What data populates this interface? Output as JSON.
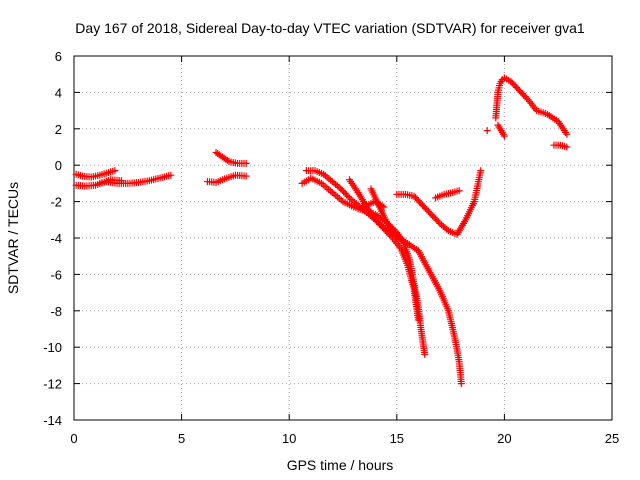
{
  "chart_data": {
    "type": "scatter",
    "title": "Day 167 of 2018, Sidereal Day-to-day VTEC variation (SDTVAR) for receiver gva1",
    "xlabel": "GPS time / hours",
    "ylabel": "SDTVAR / TECUs",
    "xlim": [
      0,
      25
    ],
    "ylim": [
      -14,
      6
    ],
    "xticks": [
      0,
      5,
      10,
      15,
      20,
      25
    ],
    "yticks": [
      -14,
      -12,
      -10,
      -8,
      -6,
      -4,
      -2,
      0,
      2,
      4,
      6
    ],
    "grid": true,
    "marker": "+",
    "color": "#ff0000",
    "series": [
      {
        "x": [
          0.1,
          0.4,
          0.8,
          1.2,
          1.6,
          1.9
        ],
        "y": [
          -0.5,
          -0.6,
          -0.65,
          -0.55,
          -0.4,
          -0.3
        ]
      },
      {
        "x": [
          0.1,
          0.5,
          1.0,
          1.5,
          2.0,
          2.5,
          3.0,
          3.5,
          4.0,
          4.5
        ],
        "y": [
          -1.1,
          -1.15,
          -1.1,
          -0.9,
          -1.0,
          -1.0,
          -0.95,
          -0.85,
          -0.7,
          -0.55
        ]
      },
      {
        "x": [
          1.2,
          1.7,
          2.2
        ],
        "y": [
          -1.0,
          -0.8,
          -0.85
        ]
      },
      {
        "x": [
          6.2,
          6.6,
          7.0,
          7.5,
          8.0
        ],
        "y": [
          -0.9,
          -0.95,
          -0.75,
          -0.55,
          -0.6
        ]
      },
      {
        "x": [
          6.6,
          6.9,
          7.2,
          7.6,
          8.0
        ],
        "y": [
          0.7,
          0.45,
          0.2,
          0.1,
          0.1
        ]
      },
      {
        "x": [
          10.6,
          10.9
        ],
        "y": [
          -1.0,
          -0.8
        ]
      },
      {
        "x": [
          10.8,
          11.2,
          11.6,
          12.0,
          12.4,
          12.8,
          13.2,
          13.6,
          14.0,
          14.4,
          14.8,
          15.0,
          15.2
        ],
        "y": [
          -0.3,
          -0.3,
          -0.5,
          -0.9,
          -1.3,
          -1.8,
          -2.2,
          -2.6,
          -3.0,
          -3.4,
          -3.7,
          -3.9,
          -4.1
        ]
      },
      {
        "x": [
          11.0,
          11.5,
          12.0,
          12.5,
          13.0,
          13.5,
          14.0,
          14.5,
          15.0,
          15.3,
          15.6,
          15.8,
          16.0,
          16.1,
          16.2,
          16.3
        ],
        "y": [
          -0.7,
          -1.0,
          -1.5,
          -2.0,
          -2.3,
          -2.5,
          -2.7,
          -3.1,
          -3.7,
          -4.2,
          -5.2,
          -6.5,
          -7.8,
          -8.8,
          -9.6,
          -10.4
        ]
      },
      {
        "x": [
          12.8,
          13.2,
          13.6,
          14.0,
          14.4,
          14.8,
          15.2,
          15.5,
          15.8,
          16.0
        ],
        "y": [
          -0.8,
          -1.5,
          -2.3,
          -3.0,
          -3.5,
          -4.0,
          -4.6,
          -5.5,
          -6.8,
          -8.5
        ]
      },
      {
        "x": [
          13.8,
          14.2,
          14.6,
          15.0,
          15.5,
          16.0,
          16.5,
          17.0,
          17.4,
          17.7,
          17.9,
          18.0
        ],
        "y": [
          -1.3,
          -2.3,
          -3.3,
          -3.9,
          -4.3,
          -4.7,
          -5.8,
          -6.9,
          -8.0,
          -9.5,
          -10.8,
          -12.0
        ]
      },
      {
        "x": [
          13.2,
          13.6,
          14.0,
          14.4
        ],
        "y": [
          -2.4,
          -2.2,
          -2.0,
          -2.3
        ]
      },
      {
        "x": [
          15.0,
          15.4,
          15.8,
          16.2,
          16.6,
          17.0,
          17.4,
          17.8,
          18.2,
          18.6,
          18.9
        ],
        "y": [
          -1.6,
          -1.6,
          -1.7,
          -2.2,
          -2.7,
          -3.2,
          -3.6,
          -3.8,
          -3.0,
          -2.0,
          -0.3
        ]
      },
      {
        "x": [
          16.8,
          17.2,
          17.6,
          17.9
        ],
        "y": [
          -1.8,
          -1.6,
          -1.5,
          -1.4
        ]
      },
      {
        "x": [
          19.2
        ],
        "y": [
          1.9
        ]
      },
      {
        "x": [
          19.6,
          19.7,
          19.8,
          19.9,
          20.0,
          20.3,
          20.7,
          21.1,
          21.5,
          22.0,
          22.5,
          22.9
        ],
        "y": [
          2.6,
          4.0,
          4.5,
          4.7,
          4.8,
          4.6,
          4.1,
          3.6,
          3.0,
          2.8,
          2.4,
          1.7
        ]
      },
      {
        "x": [
          19.7,
          20.0
        ],
        "y": [
          2.2,
          1.6
        ]
      },
      {
        "x": [
          22.3,
          22.6,
          22.9
        ],
        "y": [
          1.1,
          1.1,
          1.0
        ]
      }
    ]
  }
}
